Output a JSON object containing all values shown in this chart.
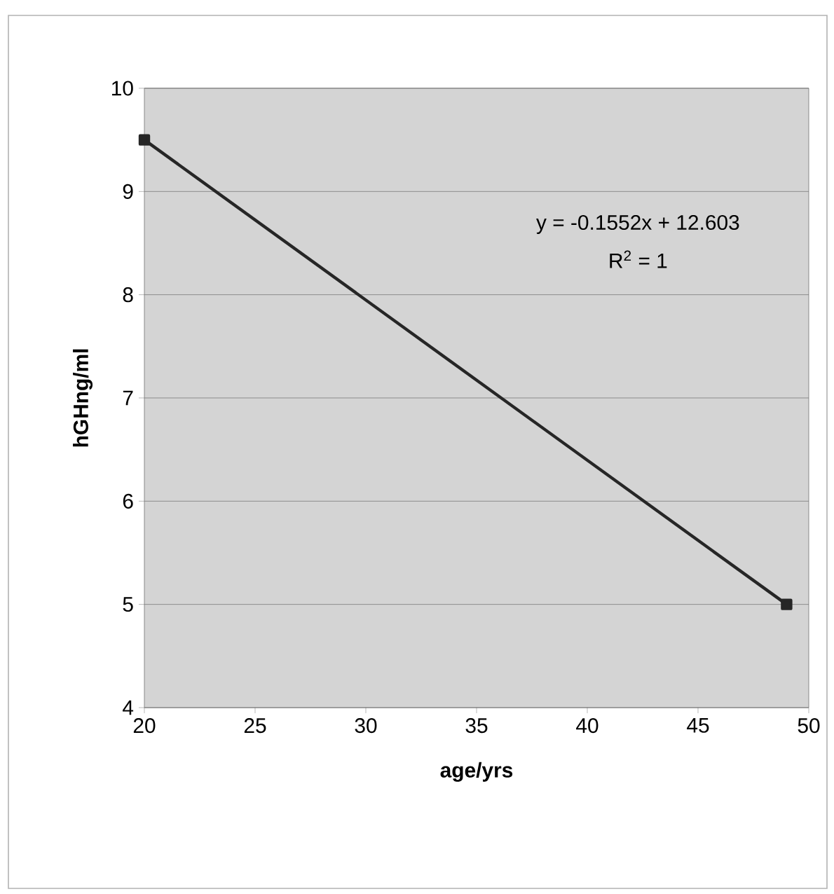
{
  "chart_data": {
    "type": "line",
    "xlabel": "age/yrs",
    "ylabel": "hGHng/ml",
    "x": [
      20,
      49
    ],
    "series": [
      {
        "color": "#262626",
        "values": [
          9.5,
          5.0
        ]
      }
    ],
    "marker": "square",
    "line_style": "solid",
    "xlim": [
      20,
      50
    ],
    "xticks": [
      20,
      25,
      30,
      35,
      40,
      45,
      50
    ],
    "ylim": [
      4,
      10
    ],
    "yticks": [
      4,
      5,
      6,
      7,
      8,
      9,
      10
    ],
    "grid": "y",
    "annotations": [
      "y = -0.1552x + 12.603",
      "R$^{2}$ = 1"
    ]
  }
}
